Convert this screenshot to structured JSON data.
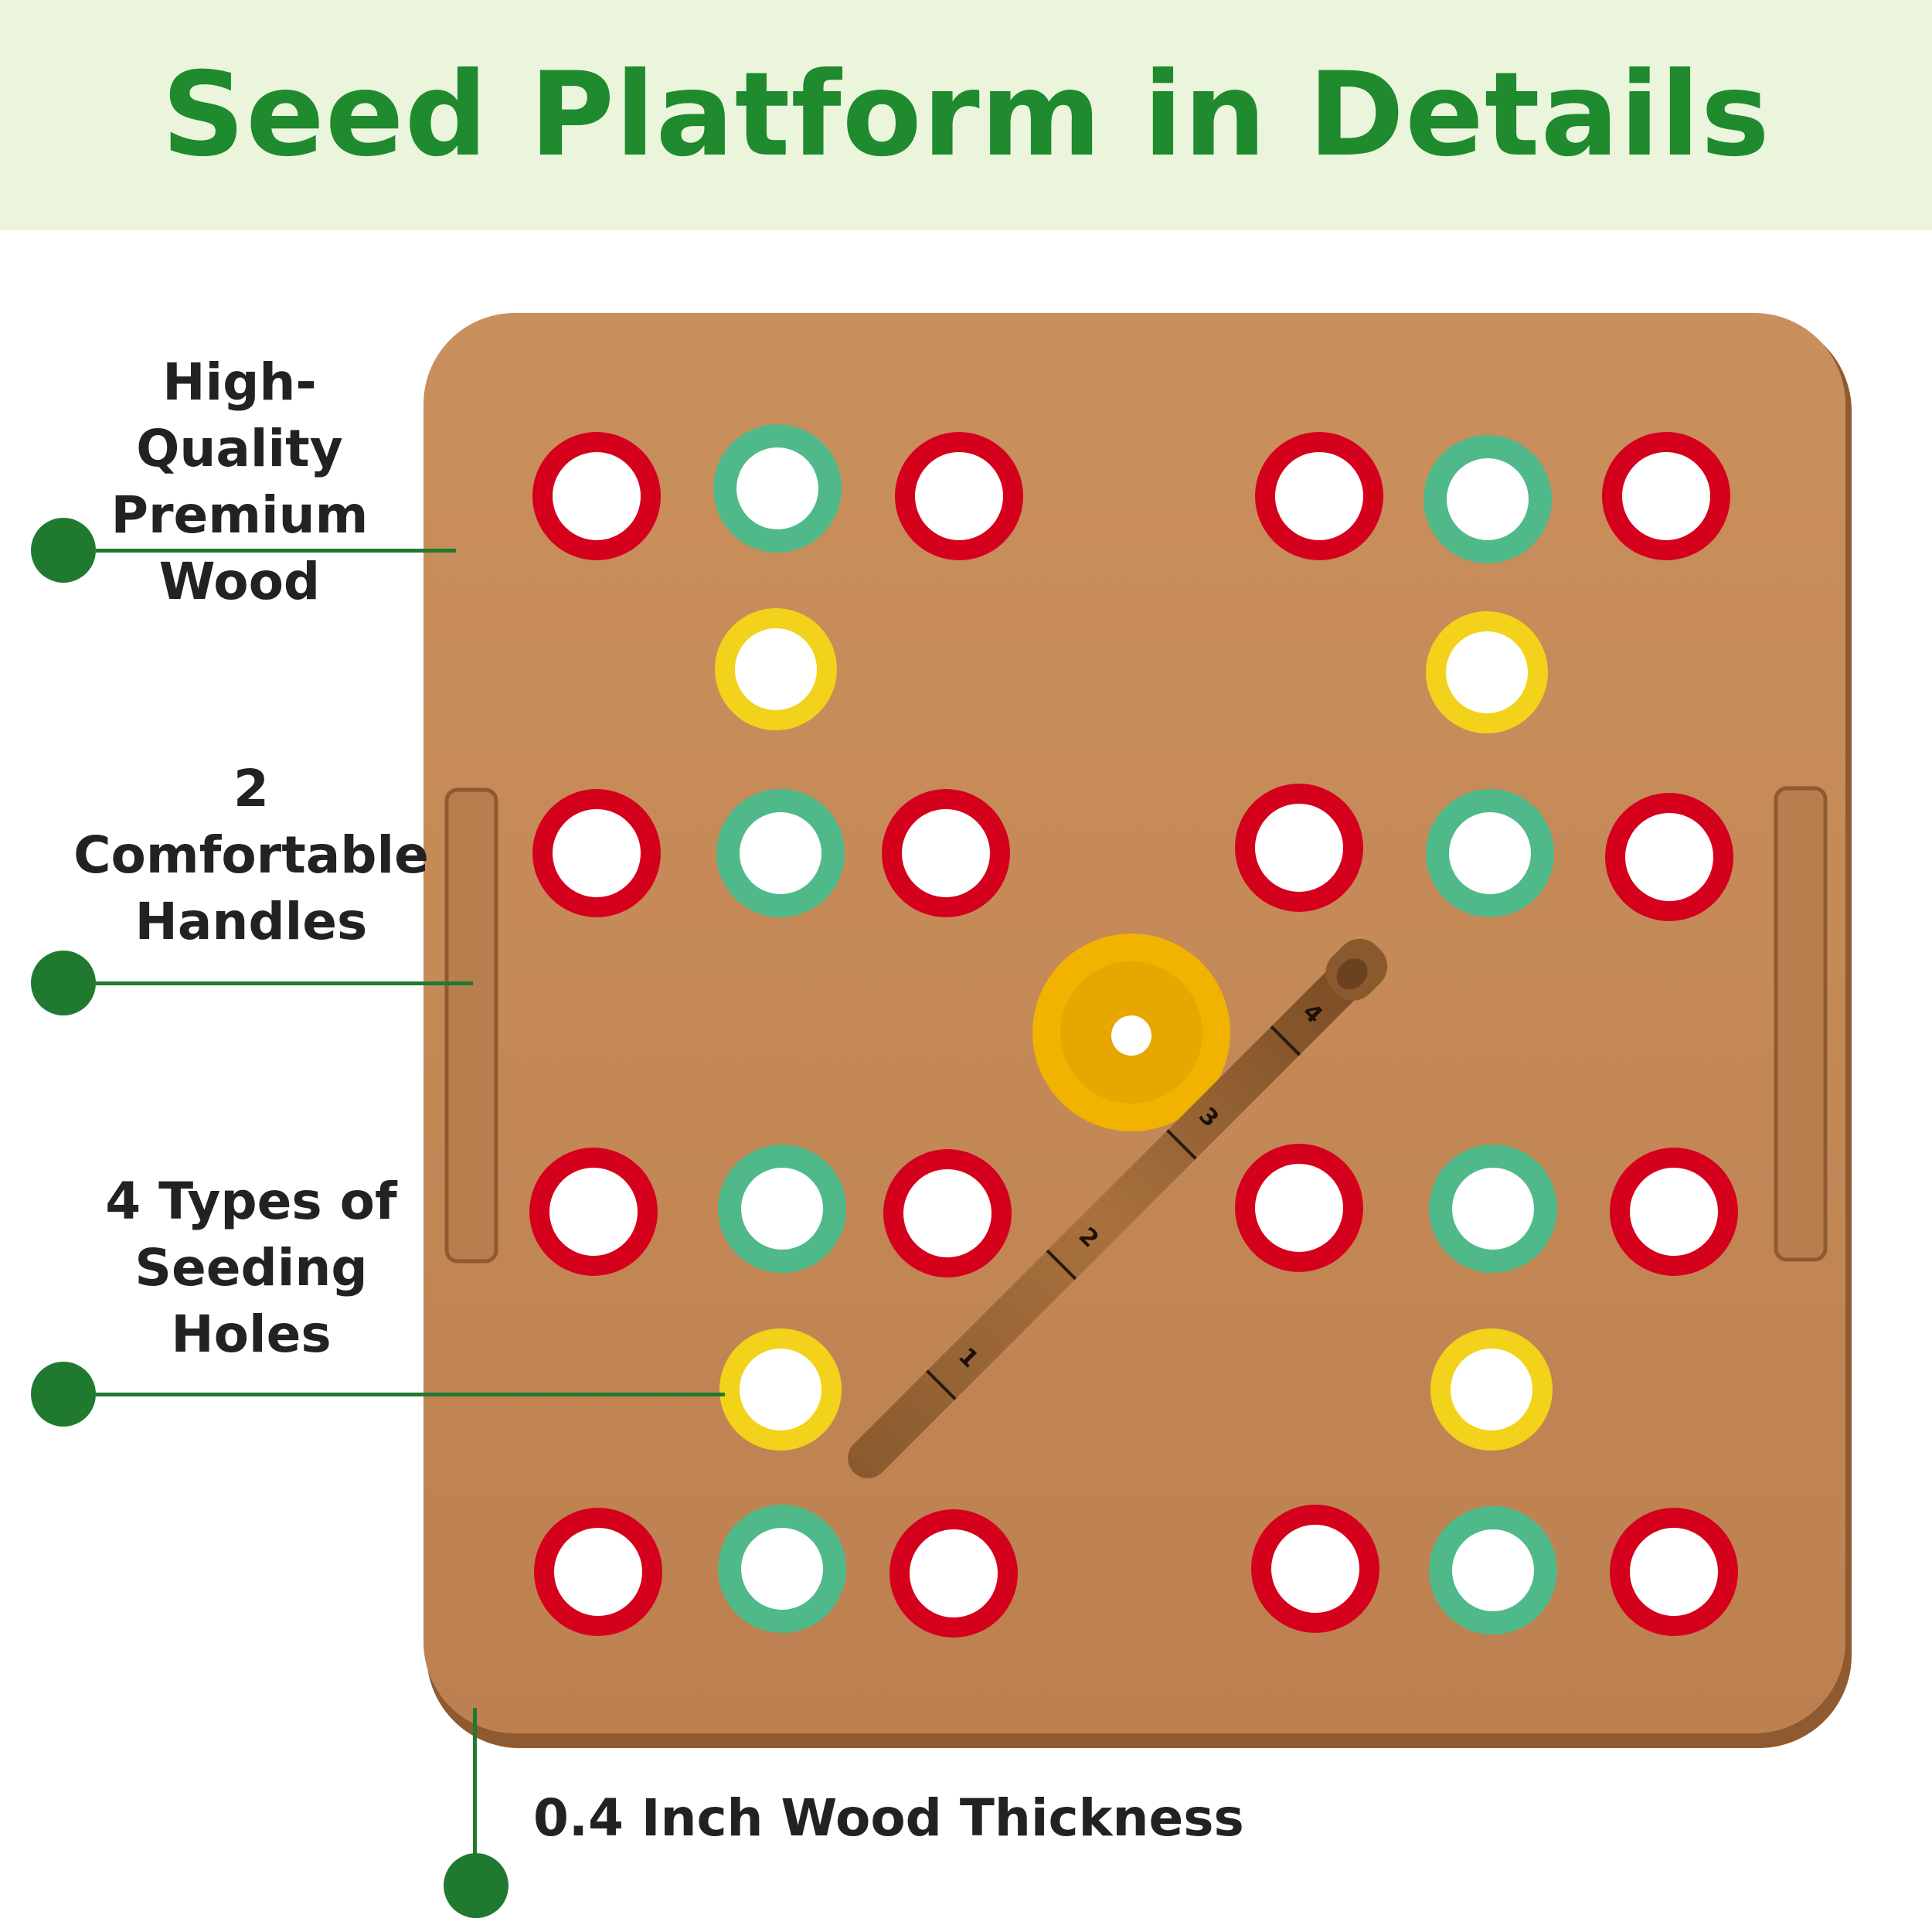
{
  "title": "Seed Platform in Details",
  "callouts": {
    "wood": [
      "High-Quality",
      "Premium",
      "Wood"
    ],
    "handles": [
      "2",
      "Comfortable",
      "Handles"
    ],
    "holes": [
      "4 Types of",
      "Seeding",
      "Holes"
    ],
    "thickness": "0.4 Inch Wood Thickness"
  },
  "dibber_marks": [
    "1",
    "2",
    "3",
    "4"
  ],
  "colors": {
    "accent": "#1f8a2e",
    "wood": "#c58b5a",
    "ring_red": "#d5001c",
    "ring_green": "#4fb98a",
    "ring_yellow": "#f2d21a",
    "funnel": "#f2b300"
  }
}
